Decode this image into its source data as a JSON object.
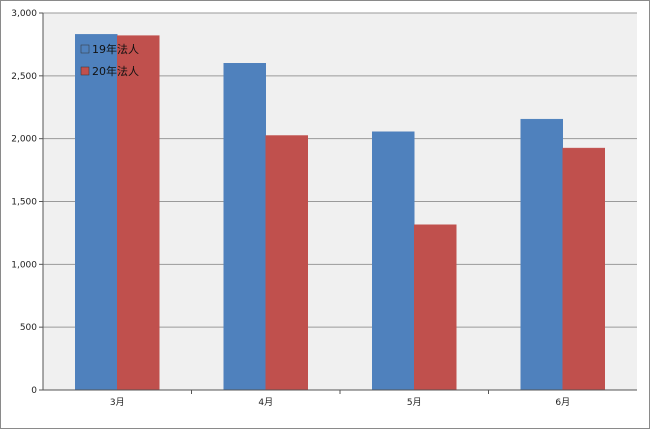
{
  "chart_data": {
    "type": "bar",
    "categories": [
      "3月",
      "4月",
      "5月",
      "6月"
    ],
    "series": [
      {
        "name": "19年法人",
        "values": [
          2830,
          2600,
          2055,
          2155
        ],
        "color": "#4f81bd"
      },
      {
        "name": "20年法人",
        "values": [
          2820,
          2025,
          1315,
          1925
        ],
        "color": "#c0504d"
      }
    ],
    "ylim": [
      0,
      3000
    ],
    "yticks": [
      "0",
      "500",
      "1,000",
      "1,500",
      "2,000",
      "2,500",
      "3,000"
    ],
    "ytick_values": [
      0,
      500,
      1000,
      1500,
      2000,
      2500,
      3000
    ],
    "grid": true,
    "legend_position": "top-left",
    "plot_background": "#f0f0f0"
  }
}
